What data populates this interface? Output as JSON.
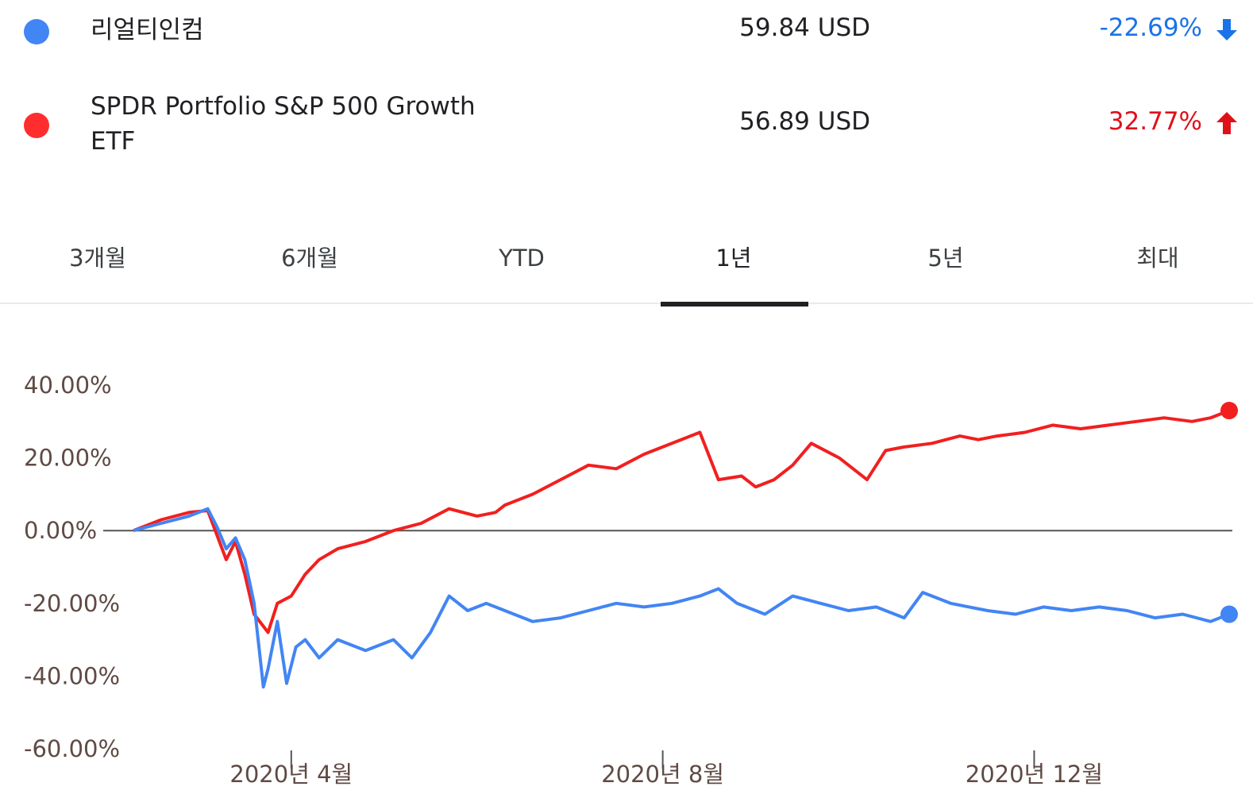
{
  "legend": [
    {
      "name": "리얼티인컴",
      "price": "59.84 USD",
      "change": "-22.69%",
      "direction": "down",
      "color": "#4285f4"
    },
    {
      "name": "SPDR Portfolio S&P 500 Growth ETF",
      "price": "56.89 USD",
      "change": "32.77%",
      "direction": "up",
      "color": "#ff2d2d"
    }
  ],
  "tabs": [
    "3개월",
    "6개월",
    "YTD",
    "1년",
    "5년",
    "최대"
  ],
  "active_tab": "1년",
  "colors": {
    "blue": "#4285f4",
    "red": "#f21f1f",
    "text_down": "#1a73e8",
    "text_up": "#e0101a"
  },
  "chart_data": {
    "type": "line",
    "title": "",
    "xlabel": "",
    "ylabel": "",
    "y_tick_labels": [
      "40.00%",
      "20.00%",
      "0.00%",
      "-20.00%",
      "-40.00%",
      "-60.00%"
    ],
    "y_ticks": [
      40,
      20,
      0,
      -20,
      -40,
      -60
    ],
    "ylim": [
      -60,
      40
    ],
    "x_tick_labels": [
      "2020년 4월",
      "2020년 8월",
      "2020년 12월"
    ],
    "x_tick_positions": [
      1.7,
      5.7,
      9.7
    ],
    "xlim": [
      0,
      11.8
    ],
    "baseline": 0,
    "series": [
      {
        "name": "SPDR Portfolio S&P 500 Growth ETF",
        "color": "#f21f1f",
        "x": [
          0,
          0.3,
          0.6,
          0.8,
          1.0,
          1.1,
          1.2,
          1.3,
          1.45,
          1.55,
          1.7,
          1.85,
          2.0,
          2.2,
          2.5,
          2.8,
          3.1,
          3.4,
          3.7,
          3.9,
          4.0,
          4.3,
          4.6,
          4.9,
          5.2,
          5.5,
          5.8,
          6.1,
          6.3,
          6.55,
          6.7,
          6.9,
          7.1,
          7.3,
          7.6,
          7.9,
          8.1,
          8.3,
          8.6,
          8.9,
          9.1,
          9.3,
          9.6,
          9.9,
          10.2,
          10.5,
          10.8,
          11.1,
          11.4,
          11.6,
          11.8
        ],
        "y": [
          0,
          3,
          5,
          5.5,
          -8,
          -3,
          -12,
          -23,
          -28,
          -20,
          -18,
          -12,
          -8,
          -5,
          -3,
          0,
          2,
          6,
          4,
          5,
          7,
          10,
          14,
          18,
          17,
          21,
          24,
          27,
          14,
          15,
          12,
          14,
          18,
          24,
          20,
          14,
          22,
          23,
          24,
          26,
          25,
          26,
          27,
          29,
          28,
          29,
          30,
          31,
          30,
          31,
          33
        ]
      },
      {
        "name": "리얼티인컴",
        "color": "#4285f4",
        "x": [
          0,
          0.3,
          0.6,
          0.8,
          0.9,
          1.0,
          1.1,
          1.2,
          1.3,
          1.4,
          1.45,
          1.55,
          1.65,
          1.75,
          1.85,
          2.0,
          2.2,
          2.5,
          2.8,
          3.0,
          3.2,
          3.4,
          3.6,
          3.8,
          4.0,
          4.3,
          4.6,
          4.9,
          5.2,
          5.5,
          5.8,
          6.1,
          6.3,
          6.5,
          6.8,
          7.1,
          7.4,
          7.7,
          8.0,
          8.3,
          8.5,
          8.8,
          9.0,
          9.2,
          9.5,
          9.8,
          10.1,
          10.4,
          10.7,
          11.0,
          11.3,
          11.6,
          11.8
        ],
        "y": [
          0,
          2,
          4,
          6,
          1,
          -5,
          -2,
          -8,
          -20,
          -43,
          -38,
          -25,
          -42,
          -32,
          -30,
          -35,
          -30,
          -33,
          -30,
          -35,
          -28,
          -18,
          -22,
          -20,
          -22,
          -25,
          -24,
          -22,
          -20,
          -21,
          -20,
          -18,
          -16,
          -20,
          -23,
          -18,
          -20,
          -22,
          -21,
          -24,
          -17,
          -20,
          -21,
          -22,
          -23,
          -21,
          -22,
          -21,
          -22,
          -24,
          -23,
          -25,
          -23
        ]
      }
    ]
  }
}
